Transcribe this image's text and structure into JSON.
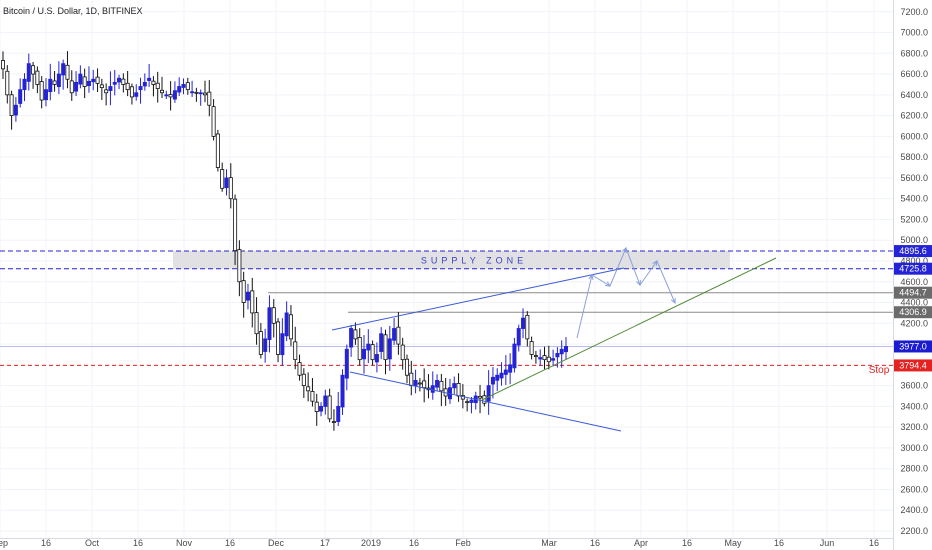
{
  "chart_data": {
    "type": "candlestick",
    "title": "Bitcoin / U.S. Dollar, 1D, BITFINEX",
    "xlabel": "",
    "ylabel": "",
    "ylim": [
      2200,
      7300
    ],
    "y_ticks": [
      2200,
      2400,
      2600,
      2800,
      3000,
      3200,
      3400,
      3600,
      3800,
      4000,
      4200,
      4400,
      4600,
      4800,
      5000,
      5200,
      5400,
      5600,
      5800,
      6000,
      6200,
      6400,
      6600,
      6800,
      7000,
      7200
    ],
    "x_ticks": [
      "Sep",
      "16",
      "Oct",
      "16",
      "Nov",
      "16",
      "Dec",
      "17",
      "2019",
      "16",
      "Feb",
      "Mar",
      "16",
      "Apr",
      "16",
      "May",
      "16",
      "Jun",
      "16"
    ],
    "grid": true,
    "colors": {
      "up": "#2424d6",
      "down": "#111111",
      "dashed_line": "#2424d6",
      "stop_line": "#e52222",
      "trend_line": "#3a59d9",
      "support_line": "#4f8a35",
      "projection": "#8ba0dc"
    },
    "price_path": [
      6650,
      6400,
      6200,
      6300,
      6450,
      6550,
      6700,
      6600,
      6500,
      6350,
      6450,
      6550,
      6500,
      6600,
      6700,
      6550,
      6420,
      6520,
      6600,
      6480,
      6530,
      6550,
      6510,
      6470,
      6420,
      6480,
      6520,
      6560,
      6500,
      6450,
      6380,
      6420,
      6480,
      6520,
      6560,
      6500,
      6460,
      6420,
      6400,
      6380,
      6440,
      6480,
      6500,
      6450,
      6430,
      6420,
      6420,
      6400,
      6300,
      6000,
      5700,
      5500,
      5600,
      5400,
      4900,
      4600,
      4400,
      4500,
      4300,
      4100,
      3900,
      4050,
      4350,
      4200,
      3900,
      4100,
      4300,
      4050,
      3850,
      3700,
      3600,
      3550,
      3450,
      3350,
      3400,
      3500,
      3280,
      3250,
      3400,
      3700,
      3950,
      4150,
      4050,
      3850,
      3950,
      4000,
      3850,
      3900,
      4100,
      3850,
      4050,
      4150,
      4000,
      3850,
      3700,
      3600,
      3650,
      3620,
      3580,
      3560,
      3600,
      3650,
      3550,
      3500,
      3580,
      3620,
      3500,
      3470,
      3440,
      3460,
      3500,
      3480,
      3430,
      3600,
      3680,
      3700,
      3720,
      3750,
      3800,
      4000,
      4150,
      4250,
      4050,
      3900,
      3880,
      3870,
      3850,
      3830,
      3860,
      3910,
      3950,
      3977
    ],
    "levels": [
      {
        "label": "4895.6",
        "value": 4895.6,
        "style": "dashed-blue"
      },
      {
        "label": "4725.8",
        "value": 4725.8,
        "style": "dashed-blue"
      },
      {
        "label": "4494.7",
        "value": 4494.7,
        "style": "gray"
      },
      {
        "label": "4306.9",
        "value": 4306.9,
        "style": "gray"
      },
      {
        "label": "3977.0",
        "value": 3977.0,
        "style": "current"
      },
      {
        "label": "3794.4",
        "value": 3794.4,
        "style": "stop"
      }
    ],
    "supply_zone": {
      "label": "SUPPLY ZONE",
      "low": 4725.8,
      "high": 4895.6
    },
    "stop_label": "Stop"
  }
}
